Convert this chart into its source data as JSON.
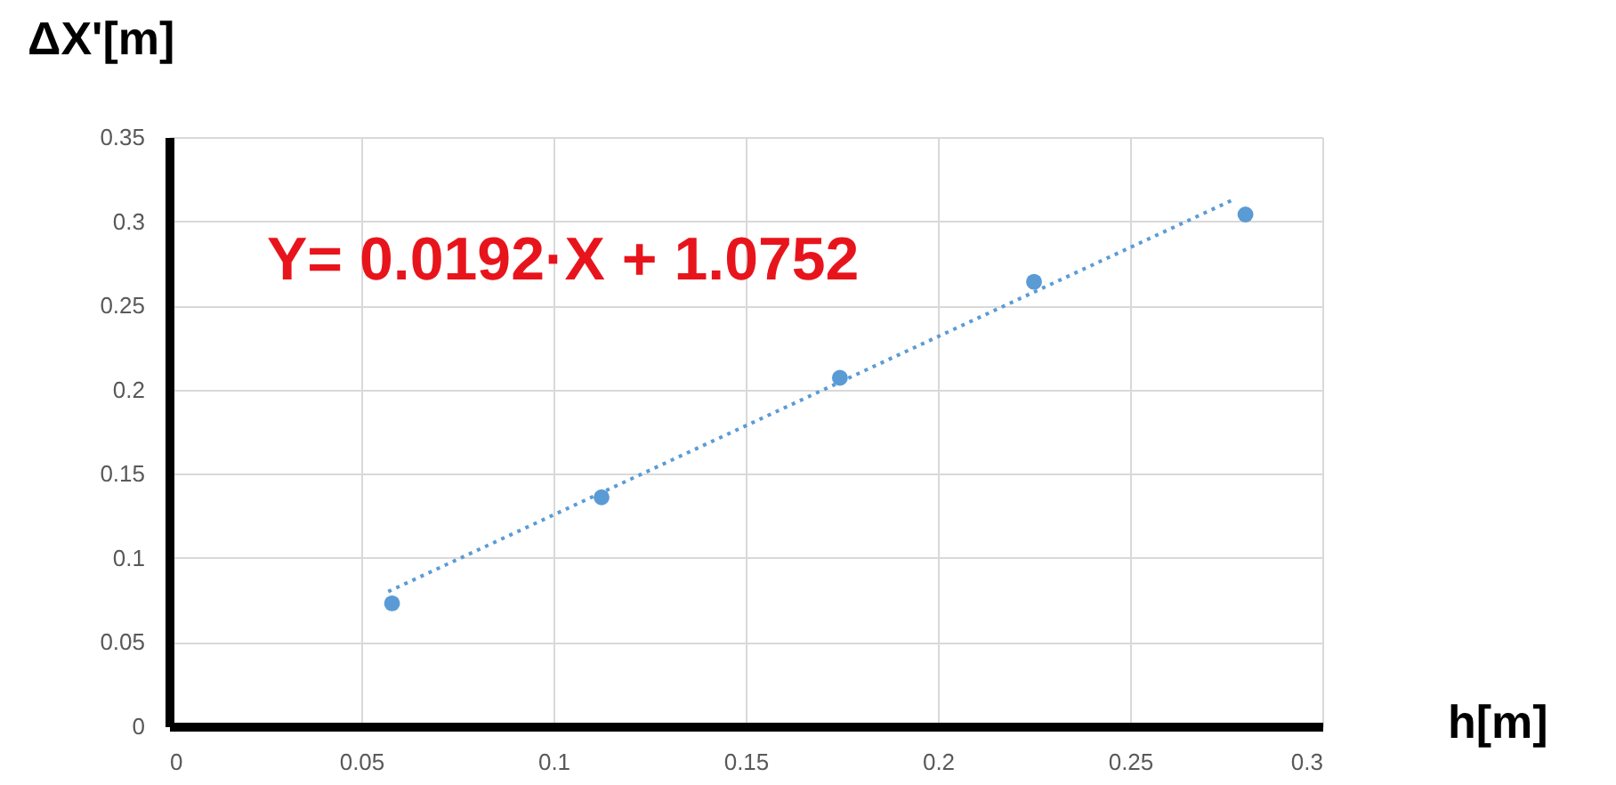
{
  "chart_data": {
    "type": "scatter",
    "xlabel": "h[m]",
    "ylabel": "ΔX'[m]",
    "xlim": [
      0,
      0.3
    ],
    "xticks": [
      0,
      0.05,
      0.1,
      0.15,
      0.2,
      0.25,
      0.3
    ],
    "ylim": [
      0,
      0.35
    ],
    "yticks": [
      0,
      0.05,
      0.1,
      0.15,
      0.2,
      0.25,
      0.3,
      0.35
    ],
    "grid": true,
    "marker": "circle",
    "series": [
      {
        "color": "#5b9bd5",
        "x": [
          0.058,
          0.1125,
          0.1745,
          0.225,
          0.28
        ],
        "values": [
          0.073,
          0.136,
          0.207,
          0.264,
          0.304
        ]
      },
      {
        "type": "line",
        "color": "#5b9bd5",
        "line_style": "dotted",
        "marker": "none",
        "x": [
          0.057,
          0.277
        ],
        "values": [
          0.08,
          0.313
        ]
      }
    ],
    "annotations": [
      "Y= 0.0192·X + 1.0752"
    ]
  }
}
